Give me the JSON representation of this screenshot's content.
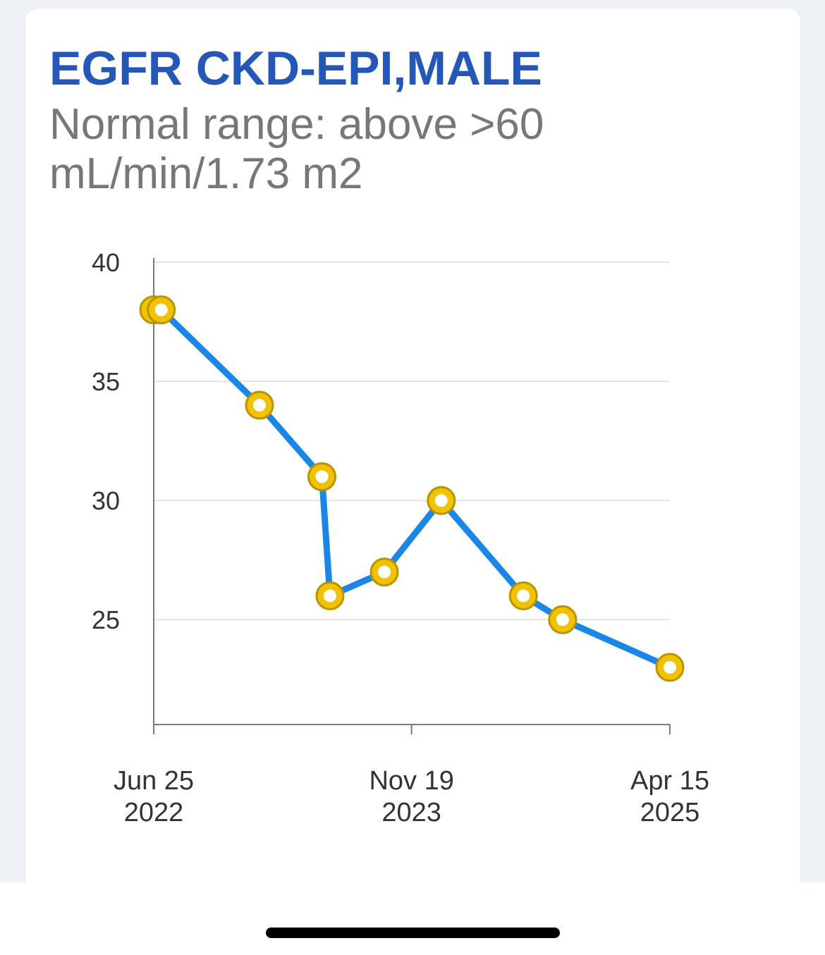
{
  "card": {
    "title": "EGFR CKD-EPI,MALE",
    "subtitle": "Normal range: above >60 mL/min/1.73 m2"
  },
  "chart_data": {
    "type": "line",
    "title": "EGFR CKD-EPI,MALE",
    "subtitle": "Normal range: above >60 mL/min/1.73 m2",
    "x_axis": {
      "type": "date",
      "range": [
        "2022-06-25",
        "2025-04-15"
      ],
      "ticks": [
        {
          "value": "2022-06-25",
          "line1": "Jun 25",
          "line2": "2022"
        },
        {
          "value": "2023-11-19",
          "line1": "Nov 19",
          "line2": "2023"
        },
        {
          "value": "2025-04-15",
          "line1": "Apr 15",
          "line2": "2025"
        }
      ]
    },
    "y_axis": {
      "range": [
        20.6,
        40
      ],
      "ticks": [
        25,
        30,
        35,
        40
      ]
    },
    "grid": true,
    "series": [
      {
        "color": "#1a86e8",
        "marker_fill": "#f2c200",
        "marker_stroke": "#b89400",
        "points": [
          {
            "x": "2022-06-25",
            "y": 38
          },
          {
            "x": "2022-07-10",
            "y": 38
          },
          {
            "x": "2023-01-21",
            "y": 34
          },
          {
            "x": "2023-05-25",
            "y": 31
          },
          {
            "x": "2023-06-10",
            "y": 26
          },
          {
            "x": "2023-09-26",
            "y": 27
          },
          {
            "x": "2024-01-17",
            "y": 30
          },
          {
            "x": "2024-06-28",
            "y": 26
          },
          {
            "x": "2024-09-14",
            "y": 25
          },
          {
            "x": "2025-04-15",
            "y": 23
          }
        ]
      }
    ]
  }
}
